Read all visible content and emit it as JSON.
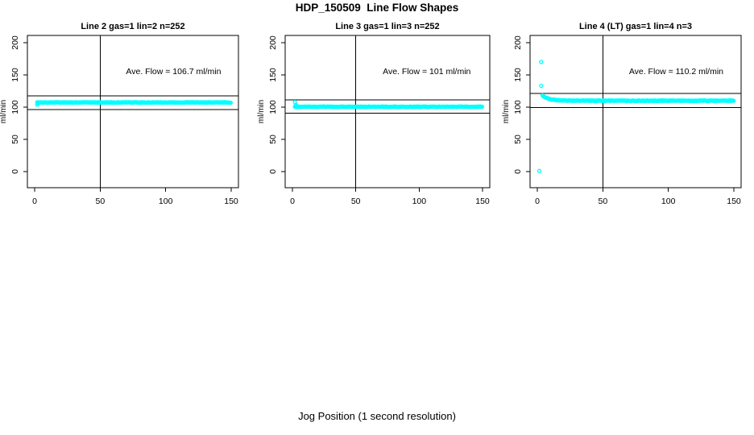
{
  "page": {
    "title": "HDP_150509  Line Flow Shapes",
    "xlabel": "Jog Position (1 second resolution)"
  },
  "colors": {
    "points": "#00FFFF",
    "axis": "#000000",
    "background": "#FFFFFF"
  },
  "chart_data": [
    {
      "type": "scatter",
      "title": "Line 2 gas=1 lin=2 n=252",
      "n": 252,
      "ave_flow": 106.7,
      "annotation": "Ave. Flow =  106.7   ml/min",
      "annotation_pos": {
        "x": 106,
        "y": 151
      },
      "ylabel": "ml/min",
      "xticks": [
        0,
        50,
        100,
        150
      ],
      "yticks": [
        0,
        50,
        100,
        150,
        200
      ],
      "xlim": [
        0,
        150
      ],
      "ylim": [
        0,
        200
      ],
      "vline_x": 50,
      "hlines": [
        117.4,
        96.0
      ],
      "points": {
        "steady_y": 107.3,
        "x_start": 2,
        "x_end": 150,
        "step": 0.6,
        "jitter": 0.9,
        "seed": 1,
        "transient": [
          {
            "x": 2,
            "y": 103.8
          },
          {
            "x": 2.5,
            "y": 105.8
          }
        ],
        "outliers": []
      }
    },
    {
      "type": "scatter",
      "title": "Line 3 gas=1 lin=3 n=252",
      "n": 252,
      "ave_flow": 101,
      "annotation": "Ave. Flow =  101   ml/min",
      "annotation_pos": {
        "x": 106,
        "y": 151
      },
      "ylabel": "ml/min",
      "xticks": [
        0,
        50,
        100,
        150
      ],
      "yticks": [
        0,
        50,
        100,
        150,
        200
      ],
      "xlim": [
        0,
        150
      ],
      "ylim": [
        0,
        200
      ],
      "vline_x": 50,
      "hlines": [
        111.1,
        90.9
      ],
      "points": {
        "steady_y": 100.6,
        "x_start": 2,
        "x_end": 150,
        "step": 0.6,
        "jitter": 0.8,
        "seed": 2,
        "transient": [
          {
            "x": 2,
            "y": 108
          },
          {
            "x": 2.6,
            "y": 103.5
          },
          {
            "x": 3.2,
            "y": 101.8
          }
        ],
        "outliers": []
      }
    },
    {
      "type": "scatter",
      "title": "Line 4 (LT) gas=1 lin=4 n=3",
      "n": 3,
      "ave_flow": 110.2,
      "annotation": "Ave. Flow =  110.2   ml/min",
      "annotation_pos": {
        "x": 106,
        "y": 151
      },
      "ylabel": "ml/min",
      "xticks": [
        0,
        50,
        100,
        150
      ],
      "yticks": [
        0,
        50,
        100,
        150,
        200
      ],
      "xlim": [
        0,
        150
      ],
      "ylim": [
        0,
        200
      ],
      "vline_x": 50,
      "hlines": [
        121.2,
        99.2
      ],
      "points": {
        "steady_y": 110,
        "x_start": 4,
        "x_end": 150,
        "step": 0.6,
        "jitter": 1.0,
        "seed": 3,
        "decay": {
          "amp": 8,
          "tau": 5,
          "from_x": 4
        },
        "transient": [],
        "outliers": [
          {
            "x": 3,
            "y": 170
          },
          {
            "x": 3,
            "y": 133
          },
          {
            "x": 1.5,
            "y": 1
          }
        ]
      }
    }
  ]
}
